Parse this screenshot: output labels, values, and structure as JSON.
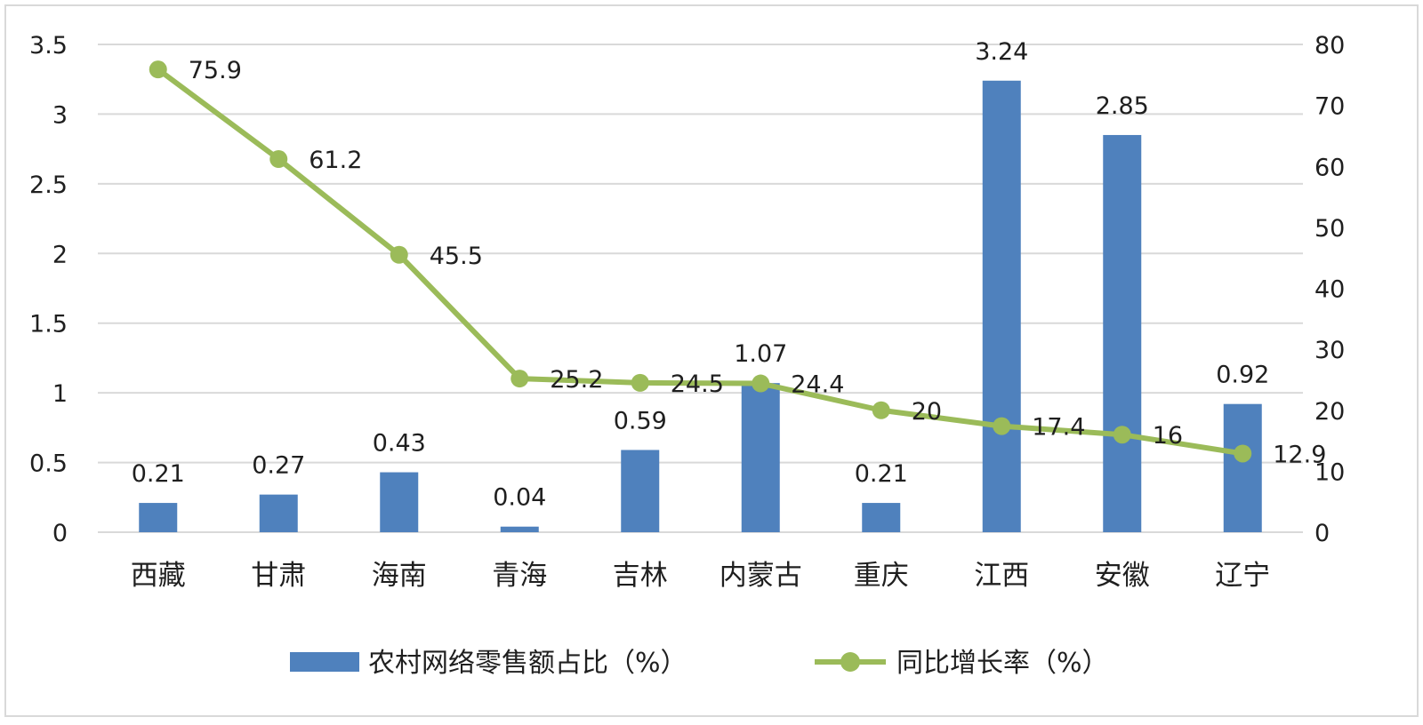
{
  "chart_data": {
    "type": "bar+line",
    "categories": [
      "西藏",
      "甘肃",
      "海南",
      "青海",
      "吉林",
      "内蒙古",
      "重庆",
      "江西",
      "安徽",
      "辽宁"
    ],
    "series": [
      {
        "name": "农村网络零售额占比（%）",
        "type": "bar",
        "axis": "left",
        "values": [
          0.21,
          0.27,
          0.43,
          0.04,
          0.59,
          1.07,
          0.21,
          3.24,
          2.85,
          0.92
        ],
        "labels": [
          "0.21",
          "0.27",
          "0.43",
          "0.04",
          "0.59",
          "1.07",
          "0.21",
          "3.24",
          "2.85",
          "0.92"
        ]
      },
      {
        "name": "同比增长率（%）",
        "type": "line",
        "axis": "right",
        "values": [
          75.9,
          61.2,
          45.5,
          25.2,
          24.5,
          24.4,
          20,
          17.4,
          16,
          12.9
        ],
        "labels": [
          "75.9",
          "61.2",
          "45.5",
          "25.2",
          "24.5",
          "24.4",
          "20",
          "17.4",
          "16",
          "12.9"
        ]
      }
    ],
    "left_axis": {
      "min": 0,
      "max": 3.5,
      "ticks": [
        "0",
        "0.5",
        "1",
        "1.5",
        "2",
        "2.5",
        "3",
        "3.5"
      ]
    },
    "right_axis": {
      "min": 0,
      "max": 80,
      "ticks": [
        "0",
        "10",
        "20",
        "30",
        "40",
        "50",
        "60",
        "70",
        "80"
      ]
    },
    "grid": true,
    "legend_position": "bottom",
    "colors": {
      "bar": "#4f81bd",
      "line": "#9bbb59",
      "grid": "#d9d9d9",
      "frame": "#d9d9d9"
    }
  }
}
